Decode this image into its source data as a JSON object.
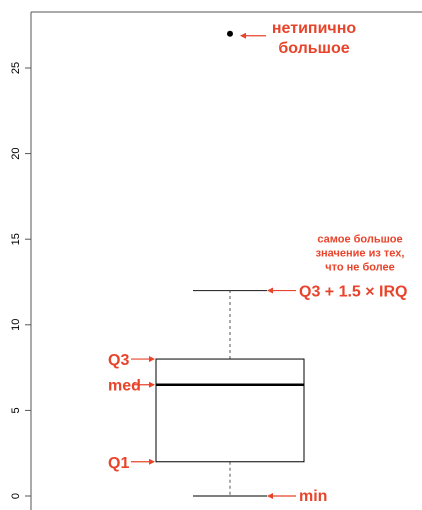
{
  "chart_data": {
    "type": "boxplot",
    "title": "",
    "xlabel": "",
    "ylabel": "",
    "ylim": [
      -0.8,
      28.2
    ],
    "y_ticks": [
      0,
      5,
      10,
      15,
      20,
      25
    ],
    "y_tick_labels": [
      "0",
      "5",
      "10",
      "15",
      "20",
      "25"
    ],
    "box": {
      "min": 0,
      "q1": 2,
      "median": 6.5,
      "q3": 8,
      "upper_whisker": 12,
      "outliers": [
        27
      ]
    },
    "annotations": {
      "outlier": [
        "нетипично",
        "большое"
      ],
      "upper_whisker_note": [
        "самое большое",
        "значение из тех,",
        "что не более"
      ],
      "upper_whisker": "Q3 + 1.5 × IRQ",
      "q3": "Q3",
      "median": "med",
      "q1": "Q1",
      "min": "min"
    },
    "colors": {
      "annotation": "#e8442c",
      "box": "#000000",
      "axis": "#555555"
    }
  }
}
